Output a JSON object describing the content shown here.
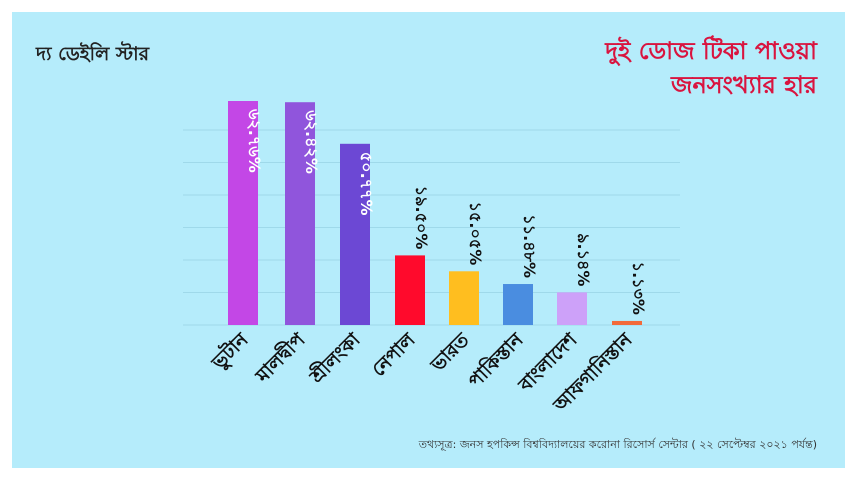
{
  "brand": {
    "logo_text": "দ্য ডেইলি স্টার"
  },
  "chart_data": {
    "type": "bar",
    "title": "দুই ডোজ টিকা পাওয়া",
    "subtitle": "জনসংখ্যার হার",
    "categories": [
      "ভুটান",
      "মালদ্বীপ",
      "শ্রীলংকা",
      "নেপাল",
      "ভারত",
      "পাকিস্তান",
      "বাংলাদেশ",
      "আফগানিস্তান"
    ],
    "values": [
      62.76,
      62.42,
      50.77,
      19.5,
      15.05,
      11.48,
      9.14,
      1.13
    ],
    "data_labels": [
      "৬২.৭৬%",
      "৬২.৪২%",
      "৫০.৭৭%",
      "১৯.৫০%",
      "১৫.০৫%",
      "১১.৪৮%",
      "৯.১৪%",
      "১.১৩%"
    ],
    "colors": [
      "#c347e6",
      "#9055dc",
      "#6c48d4",
      "#ff0a2c",
      "#ffbe1f",
      "#4a8de0",
      "#cda1f9",
      "#f26a3a"
    ],
    "label_inside": [
      true,
      true,
      true,
      false,
      false,
      false,
      false,
      false
    ],
    "ylim": [
      0,
      70
    ],
    "grid": true,
    "xlabel": "",
    "ylabel": ""
  },
  "source": "তথ্যসূত্র:  জনস হপকিন্স বিশ্ববিদ্যালয়ের করোনা রিসোর্স সেন্টার ( ২২ সেপ্টেম্বর ২০২১ পর্যন্ত)"
}
